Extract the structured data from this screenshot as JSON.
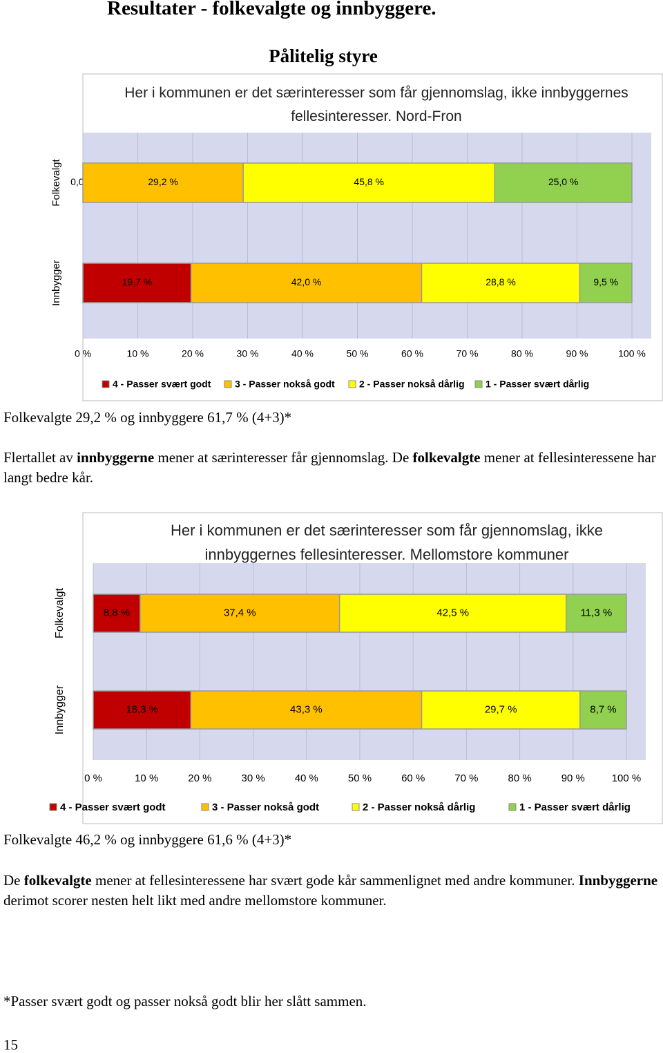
{
  "title": "Resultater - folkevalgte og innbyggere.",
  "section_title": "Pålitelig styre",
  "chart_data": [
    {
      "type": "bar",
      "orientation": "horizontal",
      "stacked": true,
      "grid": true,
      "legend": "bottom",
      "title": "Her i kommunen er det særinteresser som får gjennomslag, ikke innbyggernes fellesinteresser. Nord-Fron",
      "categories": [
        "Folkevalgt",
        "Innbygger"
      ],
      "series": [
        {
          "name": "4 - Passer svært godt",
          "color": "#c00000",
          "values": [
            0.0,
            19.7
          ],
          "value_labels": [
            "0,0 %",
            "19,7 %"
          ]
        },
        {
          "name": "3 - Passer nokså godt",
          "color": "#ffc000",
          "values": [
            29.2,
            42.0
          ],
          "value_labels": [
            "29,2 %",
            "42,0 %"
          ]
        },
        {
          "name": "2 - Passer nokså dårlig",
          "color": "#ffff00",
          "values": [
            45.8,
            28.8
          ],
          "value_labels": [
            "45,8 %",
            "28,8 %"
          ]
        },
        {
          "name": "1 - Passer svært dårlig",
          "color": "#92d050",
          "values": [
            25.0,
            9.5
          ],
          "value_labels": [
            "25,0 %",
            "9,5 %"
          ]
        }
      ],
      "xlim": [
        0,
        100
      ],
      "xticks": [
        {
          "value": 0,
          "label": "0 %"
        },
        {
          "value": 10,
          "label": "10 %"
        },
        {
          "value": 20,
          "label": "20 %"
        },
        {
          "value": 30,
          "label": "30 %"
        },
        {
          "value": 40,
          "label": "40 %"
        },
        {
          "value": 50,
          "label": "50 %"
        },
        {
          "value": 60,
          "label": "60 %"
        },
        {
          "value": 70,
          "label": "70 %"
        },
        {
          "value": 80,
          "label": "80 %"
        },
        {
          "value": 90,
          "label": "90 %"
        },
        {
          "value": 100,
          "label": "100 %"
        }
      ]
    },
    {
      "type": "bar",
      "orientation": "horizontal",
      "stacked": true,
      "grid": true,
      "legend": "bottom",
      "title": "Her i kommunen er det særinteresser som får gjennomslag, ikke innbyggernes fellesinteresser. Mellomstore kommuner",
      "categories": [
        "Folkevalgt",
        "Innbygger"
      ],
      "series": [
        {
          "name": "4 - Passer svært godt",
          "color": "#c00000",
          "values": [
            8.8,
            18.3
          ],
          "value_labels": [
            "8,8 %",
            "18,3 %"
          ]
        },
        {
          "name": "3 - Passer nokså godt",
          "color": "#ffc000",
          "values": [
            37.4,
            43.3
          ],
          "value_labels": [
            "37,4 %",
            "43,3 %"
          ]
        },
        {
          "name": "2 - Passer nokså dårlig",
          "color": "#ffff00",
          "values": [
            42.5,
            29.7
          ],
          "value_labels": [
            "42,5 %",
            "29,7 %"
          ]
        },
        {
          "name": "1 - Passer svært dårlig",
          "color": "#92d050",
          "values": [
            11.3,
            8.7
          ],
          "value_labels": [
            "11,3 %",
            "8,7 %"
          ]
        }
      ],
      "xlim": [
        0,
        100
      ],
      "xticks": [
        {
          "value": 0,
          "label": "0 %"
        },
        {
          "value": 10,
          "label": "10 %"
        },
        {
          "value": 20,
          "label": "20 %"
        },
        {
          "value": 30,
          "label": "30 %"
        },
        {
          "value": 40,
          "label": "40 %"
        },
        {
          "value": 50,
          "label": "50 %"
        },
        {
          "value": 60,
          "label": "60 %"
        },
        {
          "value": 70,
          "label": "70 %"
        },
        {
          "value": 80,
          "label": "80 %"
        },
        {
          "value": 90,
          "label": "90 %"
        },
        {
          "value": 100,
          "label": "100 %"
        }
      ]
    }
  ],
  "summaries": [
    "Folkevalgte 29,2 % og innbyggere 61,7 % (4+3)*",
    "Folkevalgte 46,2 % og innbyggere 61,6 % (4+3)*"
  ],
  "paragraphs": [
    [
      "Flertallet av ",
      "innbyggerne",
      " mener at særinteresser får gjennomslag. De ",
      "folkevalgte",
      " mener at fellesinteressene har langt bedre kår."
    ],
    [
      "De ",
      "folkevalgte",
      " mener at fellesinteressene har svært gode kår sammenlignet med andre kommuner. ",
      "Innbyggerne",
      " derimot scorer nesten helt likt med andre mellomstore kommuner."
    ]
  ],
  "footnote": "*Passer svært godt og passer nokså godt blir her slått sammen.",
  "page_number": "15"
}
